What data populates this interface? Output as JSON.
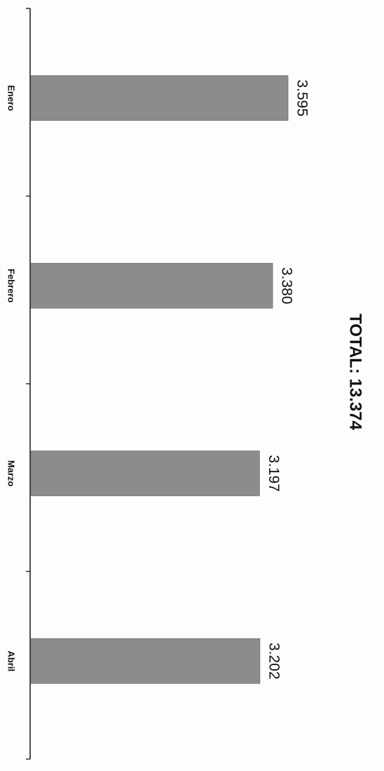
{
  "chart_data": {
    "type": "bar",
    "orientation": "horizontal",
    "categories": [
      "Enero",
      "Febrero",
      "Marzo",
      "Abril"
    ],
    "values": [
      3595,
      3380,
      3197,
      3202
    ],
    "value_labels": [
      "3.595",
      "3.380",
      "3.197",
      "3.202"
    ],
    "annotation": "TOTAL: 13.374",
    "title": "",
    "xlabel": "",
    "ylabel": "",
    "grid": false,
    "legend": "none",
    "colors": {
      "bar": "#8c8c8c",
      "axis": "#222222"
    }
  }
}
